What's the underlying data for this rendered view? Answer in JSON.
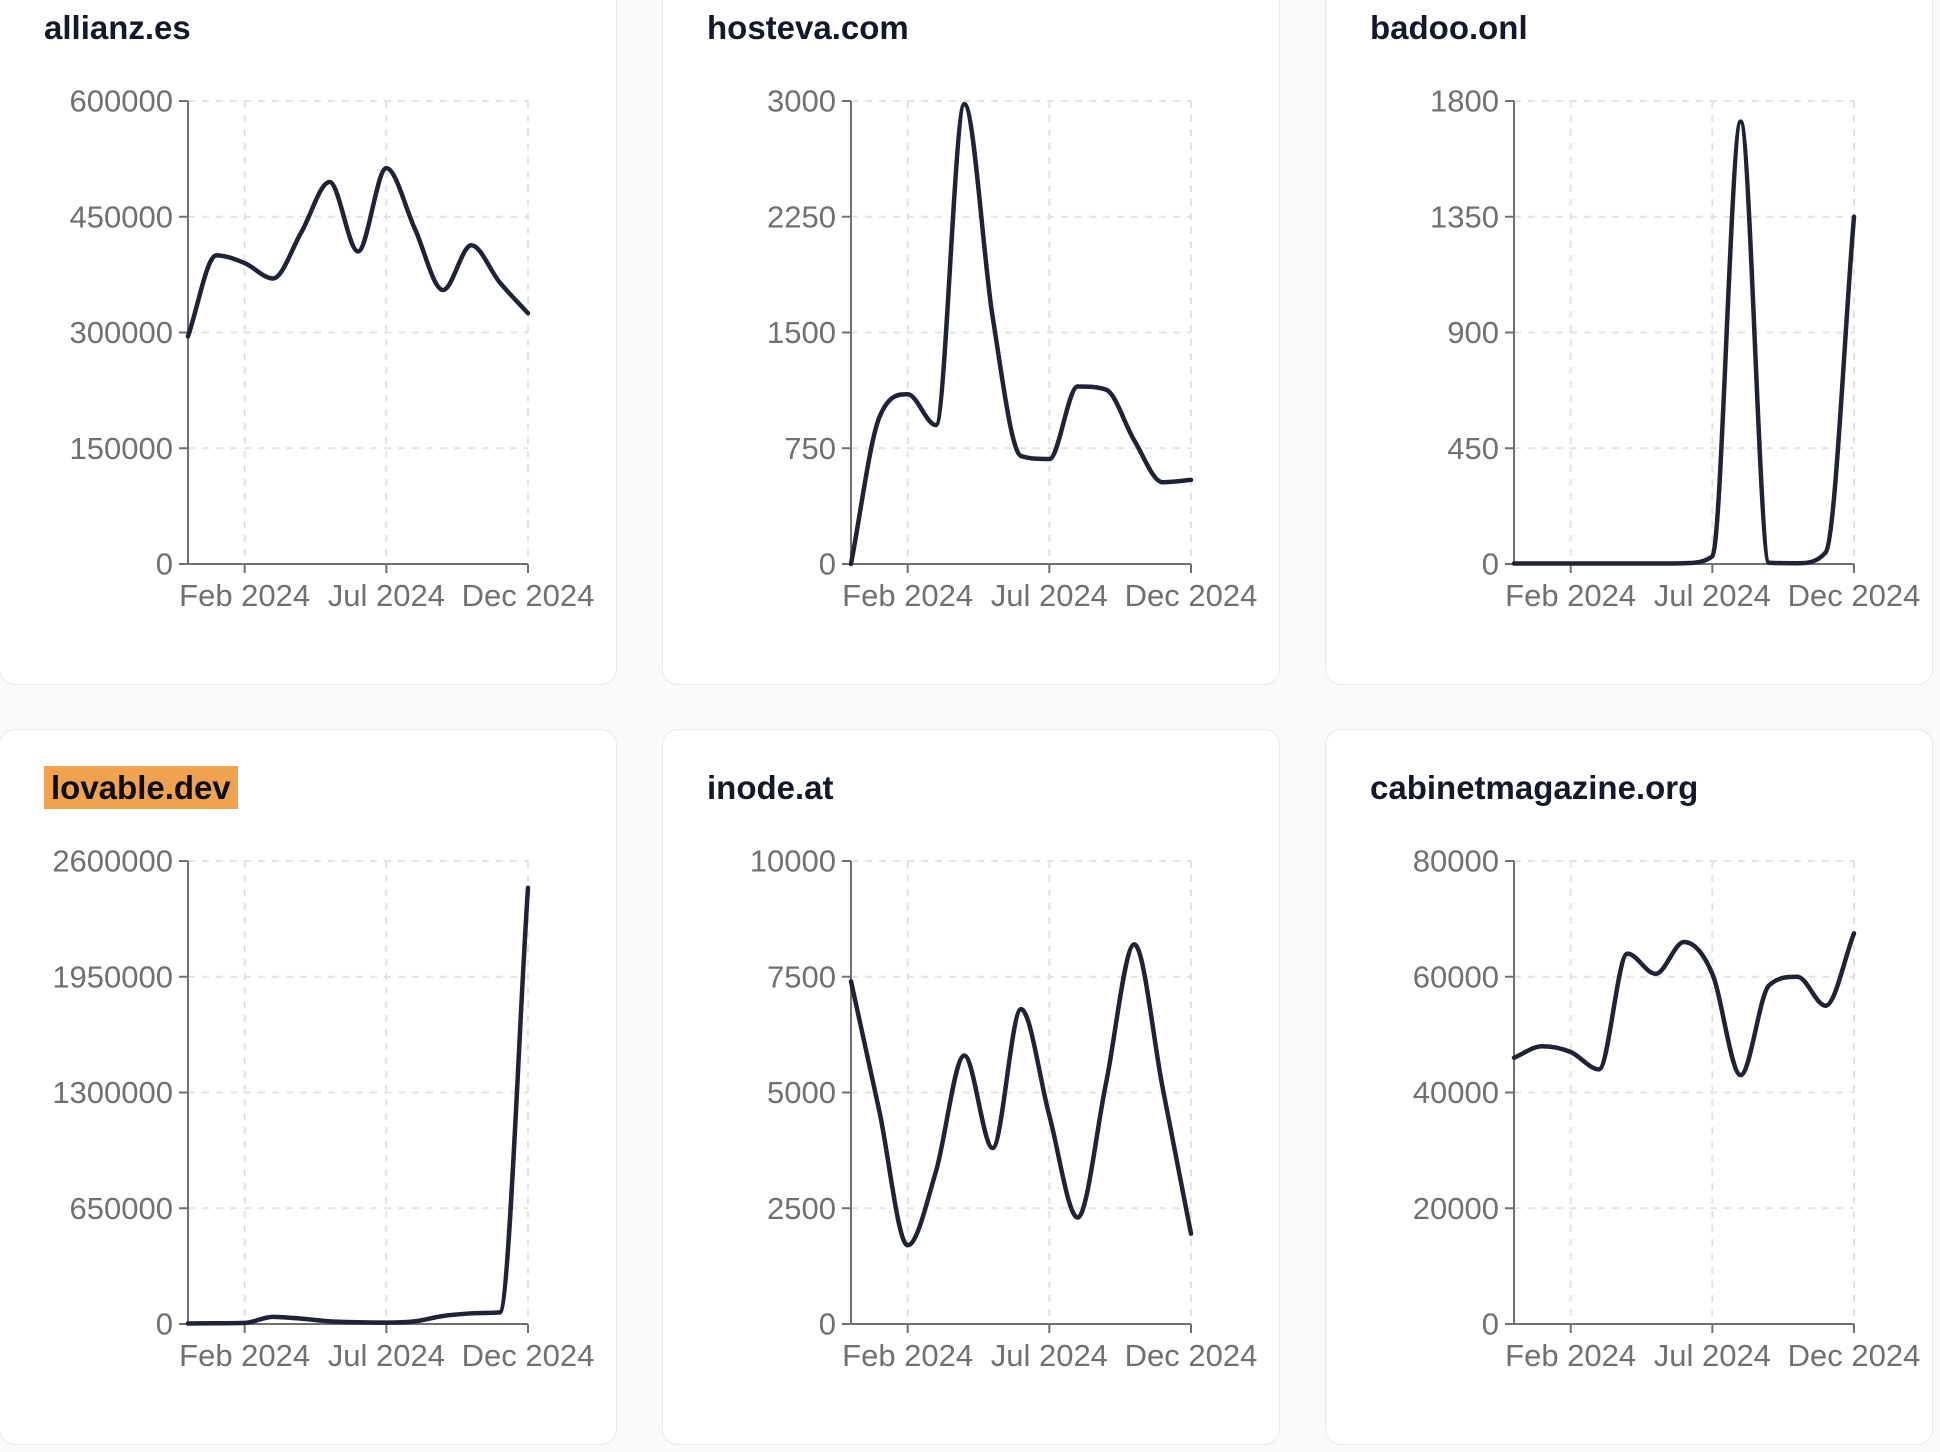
{
  "page": {
    "background": "#f8fafc",
    "card_background": "#ffffff",
    "card_border_color": "#e4e9f1",
    "line_color": "#1f2338",
    "axis_color": "#707070",
    "grid_color": "#e3e3e3",
    "title_color": "#14182b",
    "highlight_color": "#f0a250"
  },
  "x_axis": {
    "tick_labels": [
      "Feb 2024",
      "Jul 2024",
      "Dec 2024"
    ],
    "tick_month_indices": [
      2,
      7,
      12
    ],
    "n_points": 13
  },
  "chart_data": [
    {
      "type": "line",
      "title": "allianz.es",
      "highlighted": false,
      "ylim": [
        0,
        600000
      ],
      "y_ticks": [
        0,
        150000,
        300000,
        450000,
        600000
      ],
      "x_tick_labels": [
        "Feb 2024",
        "Jul 2024",
        "Dec 2024"
      ],
      "x_tick_positions": [
        2,
        7,
        12
      ],
      "values": [
        295000,
        400000,
        390000,
        370000,
        430000,
        495000,
        405000,
        513000,
        435000,
        355000,
        413000,
        365000,
        325000
      ]
    },
    {
      "type": "line",
      "title": "hosteva.com",
      "highlighted": false,
      "ylim": [
        0,
        3000
      ],
      "y_ticks": [
        0,
        750,
        1500,
        2250,
        3000
      ],
      "x_tick_labels": [
        "Feb 2024",
        "Jul 2024",
        "Dec 2024"
      ],
      "x_tick_positions": [
        2,
        7,
        12
      ],
      "values": [
        0,
        950,
        1100,
        900,
        2980,
        1600,
        700,
        680,
        1150,
        1130,
        800,
        530,
        545
      ]
    },
    {
      "type": "line",
      "title": "badoo.onl",
      "highlighted": false,
      "ylim": [
        0,
        1800
      ],
      "y_ticks": [
        0,
        450,
        900,
        1350,
        1800
      ],
      "x_tick_labels": [
        "Feb 2024",
        "Jul 2024",
        "Dec 2024"
      ],
      "x_tick_positions": [
        2,
        7,
        12
      ],
      "values": [
        2,
        2,
        2,
        2,
        2,
        2,
        3,
        30,
        1720,
        5,
        3,
        45,
        1350
      ]
    },
    {
      "type": "line",
      "title": "lovable.dev",
      "highlighted": true,
      "ylim": [
        0,
        2600000
      ],
      "y_ticks": [
        0,
        650000,
        1300000,
        1950000,
        2600000
      ],
      "x_tick_labels": [
        "Feb 2024",
        "Jul 2024",
        "Dec 2024"
      ],
      "x_tick_positions": [
        2,
        7,
        12
      ],
      "values": [
        3000,
        4000,
        6000,
        40000,
        30000,
        15000,
        10000,
        8000,
        15000,
        45000,
        60000,
        65000,
        2450000
      ]
    },
    {
      "type": "line",
      "title": "inode.at",
      "highlighted": false,
      "ylim": [
        0,
        10000
      ],
      "y_ticks": [
        0,
        2500,
        5000,
        7500,
        10000
      ],
      "x_tick_labels": [
        "Feb 2024",
        "Jul 2024",
        "Dec 2024"
      ],
      "x_tick_positions": [
        2,
        7,
        12
      ],
      "values": [
        7400,
        4600,
        1700,
        3300,
        5800,
        3800,
        6800,
        4500,
        2300,
        5200,
        8200,
        5100,
        1950
      ]
    },
    {
      "type": "line",
      "title": "cabinetmagazine.org",
      "highlighted": false,
      "ylim": [
        0,
        80000
      ],
      "y_ticks": [
        0,
        20000,
        40000,
        60000,
        80000
      ],
      "x_tick_labels": [
        "Feb 2024",
        "Jul 2024",
        "Dec 2024"
      ],
      "x_tick_positions": [
        2,
        7,
        12
      ],
      "values": [
        46000,
        48000,
        47000,
        44000,
        64000,
        60500,
        66000,
        60500,
        43000,
        58500,
        60000,
        55000,
        67500
      ]
    }
  ]
}
